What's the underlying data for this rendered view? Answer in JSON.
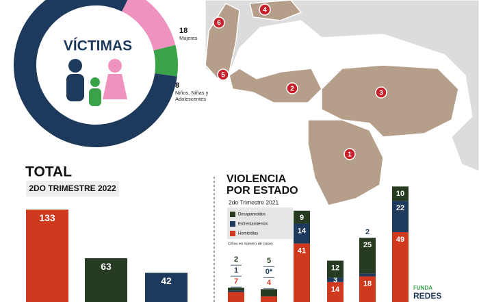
{
  "chart_data": [
    {
      "type": "donut",
      "title": "VÍCTIMAS",
      "series": [
        {
          "name": "Mujeres",
          "color": "#ee93c0",
          "values": [
            18
          ]
        },
        {
          "name": "Niños, Niñas y Adolescentes",
          "color": "#3aa34a",
          "values": [
            8
          ]
        },
        {
          "name": null,
          "color": "#1d3a5c",
          "values": [
            104
          ]
        }
      ]
    },
    {
      "type": "bar",
      "title": "TOTAL",
      "subtitle": "2DO TRIMESTRE 2022",
      "categories": [
        null,
        null,
        null
      ],
      "values": [
        133,
        63,
        42
      ],
      "colors": [
        "#cf3a1f",
        "#263b22",
        "#1d3a5c"
      ],
      "ylim": [
        0,
        140
      ]
    },
    {
      "type": "stacked_bar",
      "title": "VIOLENCIA POR ESTADO",
      "subtitle": "2do Trimestre 2021",
      "note": "Cifras en número de casos",
      "categories": [
        null,
        null,
        null,
        null,
        null,
        null
      ],
      "series": [
        {
          "name": "Homicidios",
          "color": "#cf3a1f",
          "values": [
            7,
            4,
            41,
            14,
            18,
            49
          ]
        },
        {
          "name": "Enfrentamientos",
          "color": "#1d3a5c",
          "values": [
            1,
            0,
            14,
            3,
            2,
            22
          ],
          "value_labels": [
            "1",
            "0*",
            "14",
            "3",
            "2",
            "22"
          ]
        },
        {
          "name": "Desaparecidos",
          "color": "#263b22",
          "values": [
            2,
            5,
            9,
            12,
            25,
            10
          ]
        }
      ],
      "legend_order": [
        2,
        1,
        0
      ],
      "ylim": [
        0,
        85
      ]
    }
  ],
  "map": {
    "markers": [
      1,
      2,
      3,
      4,
      5,
      6
    ]
  },
  "logo": {
    "line1": "FUNDA",
    "line2": "REDES"
  }
}
